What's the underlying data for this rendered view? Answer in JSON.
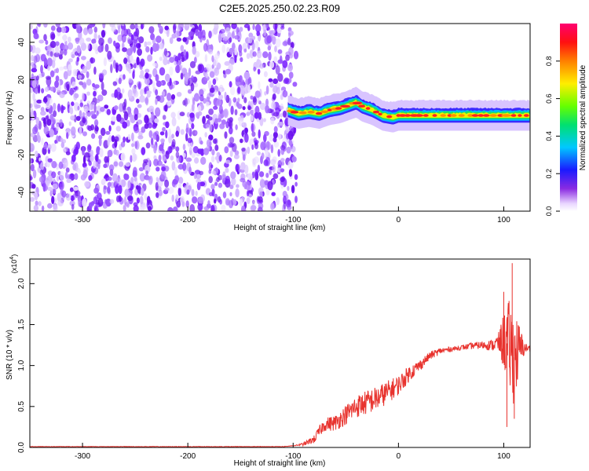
{
  "figure_title": "C2E5.2025.250.02.23.R09",
  "colors": {
    "snr_line": "#e8332e",
    "spectro_noise": "#7a1fff",
    "background": "#ffffff"
  },
  "chart_data": [
    {
      "type": "heatmap",
      "title": "C2E5.2025.250.02.23.R09",
      "xlabel": "Height of straight line (km)",
      "ylabel": "Frequency (Hz)",
      "xlim": [
        -350,
        125
      ],
      "ylim": [
        -50,
        50
      ],
      "x_ticks": [
        "-300",
        "-200",
        "-100",
        "0",
        "100"
      ],
      "x_tick_values": [
        -300,
        -200,
        -100,
        0,
        100
      ],
      "y_ticks": [
        "-40",
        "-20",
        "0",
        "20",
        "40"
      ],
      "y_tick_values": [
        -40,
        -20,
        0,
        20,
        40
      ],
      "colorbar": {
        "label": "Normalized spectral amplitude",
        "range": [
          0,
          1
        ],
        "ticks": [
          "0.0",
          "0.2",
          "0.4",
          "0.6",
          "0.8"
        ],
        "tick_values": [
          0.0,
          0.2,
          0.4,
          0.6,
          0.8
        ],
        "colormap": "rainbow (violet to magenta)"
      },
      "noise_region_x": [
        -350,
        -100
      ],
      "signal_trace": {
        "x": [
          -105,
          -95,
          -85,
          -75,
          -65,
          -55,
          -45,
          -40,
          -35,
          -25,
          -15,
          -5,
          0,
          10,
          20,
          40,
          60,
          80,
          100,
          120
        ],
        "freq_hz": [
          4,
          2,
          3,
          2,
          4,
          5,
          7,
          8,
          6,
          4,
          1,
          0,
          1,
          1,
          1,
          1,
          1,
          1,
          1,
          1
        ]
      }
    },
    {
      "type": "line",
      "xlabel": "Height of straight line (km)",
      "ylabel": "SNR (10 * v/v)",
      "y_multiplier": "(x10",
      "y_multiplier_exp": "4",
      "xlim": [
        -350,
        125
      ],
      "ylim": [
        0,
        2.3
      ],
      "x_ticks": [
        "-300",
        "-200",
        "-100",
        "0",
        "100"
      ],
      "x_tick_values": [
        -300,
        -200,
        -100,
        0,
        100
      ],
      "y_ticks": [
        "0.0",
        "0.5",
        "1.0",
        "1.5",
        "2.0"
      ],
      "y_tick_values": [
        0.0,
        0.5,
        1.0,
        1.5,
        2.0
      ],
      "series": [
        {
          "x": [
            -350,
            -300,
            -250,
            -200,
            -150,
            -110,
            -100,
            -90,
            -80,
            -75,
            -70,
            -60,
            -50,
            -40,
            -30,
            -20,
            -10,
            0,
            10,
            20,
            30,
            40,
            50,
            60,
            70,
            80,
            90,
            95,
            100,
            105,
            110,
            115,
            120,
            125
          ],
          "values": [
            0.01,
            0.01,
            0.01,
            0.01,
            0.01,
            0.01,
            0.02,
            0.04,
            0.1,
            0.2,
            0.28,
            0.3,
            0.4,
            0.5,
            0.55,
            0.6,
            0.68,
            0.76,
            0.9,
            1.0,
            1.12,
            1.18,
            1.2,
            1.22,
            1.24,
            1.25,
            1.25,
            1.28,
            1.3,
            1.25,
            1.1,
            1.2,
            1.22,
            1.2
          ]
        }
      ],
      "noise_amplitude": [
        0,
        0,
        0,
        0,
        0,
        0,
        0,
        0.02,
        0.05,
        0.07,
        0.08,
        0.1,
        0.12,
        0.14,
        0.15,
        0.15,
        0.14,
        0.12,
        0.1,
        0.07,
        0.05,
        0.04,
        0.03,
        0.03,
        0.04,
        0.05,
        0.07,
        0.12,
        0.35,
        0.55,
        0.6,
        0.3,
        0.06,
        0.04
      ],
      "spike_peaks": [
        {
          "x": 100,
          "value": 1.9
        },
        {
          "x": 108,
          "value": 2.25
        },
        {
          "x": 103,
          "value": 0.25
        },
        {
          "x": 110,
          "value": 0.35
        }
      ]
    }
  ]
}
